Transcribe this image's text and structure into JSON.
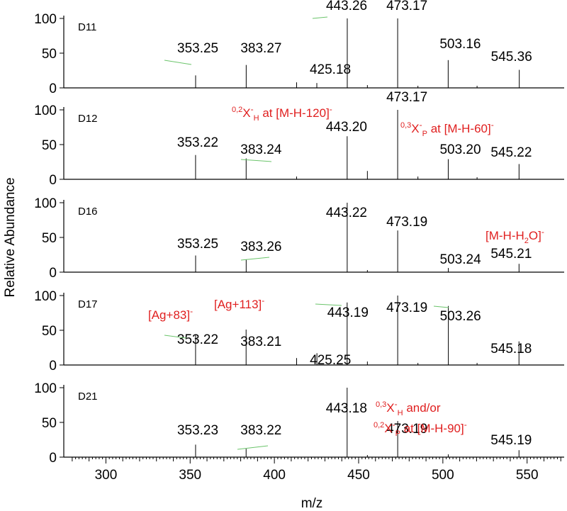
{
  "colors": {
    "annotation": "#e01f1f",
    "leader": "#6ac46a",
    "axis": "#000000",
    "peak": "#000000"
  },
  "chart_data": {
    "type": "bar",
    "xlabel": "m/z",
    "ylabel": "Relative Abundance",
    "xlim": [
      275,
      572
    ],
    "ylim": [
      0,
      100
    ],
    "x_ticks": [
      300,
      350,
      400,
      450,
      500,
      550
    ],
    "y_ticks": [
      0,
      50,
      100
    ],
    "panels": [
      {
        "name": "D11",
        "peaks": [
          {
            "x": 353.25,
            "y": 18,
            "label": "353.25"
          },
          {
            "x": 383.27,
            "y": 33,
            "label": "383.27"
          },
          {
            "x": 413.2,
            "y": 8
          },
          {
            "x": 425.18,
            "y": 7,
            "label": "425.18"
          },
          {
            "x": 443.26,
            "y": 100,
            "label": "443.26"
          },
          {
            "x": 455.2,
            "y": 4
          },
          {
            "x": 473.17,
            "y": 100,
            "label": "473.17"
          },
          {
            "x": 485.2,
            "y": 3
          },
          {
            "x": 503.16,
            "y": 40,
            "label": "503.16"
          },
          {
            "x": 520.3,
            "y": 3
          },
          {
            "x": 545.36,
            "y": 26,
            "label": "545.36"
          }
        ],
        "annotations": []
      },
      {
        "name": "D12",
        "peaks": [
          {
            "x": 353.22,
            "y": 35,
            "label": "353.22"
          },
          {
            "x": 383.24,
            "y": 30,
            "label": "383.24"
          },
          {
            "x": 413.2,
            "y": 4
          },
          {
            "x": 443.2,
            "y": 62,
            "label": "443.20"
          },
          {
            "x": 455.2,
            "y": 12
          },
          {
            "x": 473.17,
            "y": 100,
            "label": "473.17"
          },
          {
            "x": 485.2,
            "y": 4
          },
          {
            "x": 503.2,
            "y": 29,
            "label": "503.20"
          },
          {
            "x": 520.3,
            "y": 3
          },
          {
            "x": 545.22,
            "y": 22,
            "label": "545.22"
          }
        ],
        "annotations": [
          {
            "sup": "0,2",
            "main": "X",
            "sup2": "-",
            "sub": "H",
            "rest": " at [M-H-120]",
            "tail": "-"
          },
          {
            "sup": "0,3",
            "main": "X",
            "sup2": "-",
            "sub": "P",
            "rest": " at [M-H-60]",
            "tail": "-"
          }
        ]
      },
      {
        "name": "D16",
        "peaks": [
          {
            "x": 353.25,
            "y": 24,
            "label": "353.25"
          },
          {
            "x": 383.26,
            "y": 18,
            "label": "383.26"
          },
          {
            "x": 443.22,
            "y": 100,
            "label": "443.22"
          },
          {
            "x": 455.2,
            "y": 3
          },
          {
            "x": 473.19,
            "y": 60,
            "label": "473.19"
          },
          {
            "x": 503.24,
            "y": 6,
            "label": "503.24"
          },
          {
            "x": 545.21,
            "y": 12,
            "label": "545.21"
          }
        ],
        "annotations": [
          {
            "pre": "[M-H-H",
            "sub": "2",
            "rest": "O]",
            "tail": "-"
          }
        ]
      },
      {
        "name": "D17",
        "peaks": [
          {
            "x": 353.22,
            "y": 44,
            "label": "353.22"
          },
          {
            "x": 383.21,
            "y": 51,
            "label": "383.21"
          },
          {
            "x": 413.2,
            "y": 10
          },
          {
            "x": 425.25,
            "y": 17,
            "label": "425.25"
          },
          {
            "x": 443.19,
            "y": 90,
            "label": "443.19"
          },
          {
            "x": 455.2,
            "y": 5
          },
          {
            "x": 473.19,
            "y": 100,
            "label": "473.19"
          },
          {
            "x": 485.2,
            "y": 3
          },
          {
            "x": 503.26,
            "y": 85,
            "label": "503.26"
          },
          {
            "x": 520.3,
            "y": 3
          },
          {
            "x": 545.18,
            "y": 34,
            "label": "545.18"
          }
        ],
        "annotations": [
          {
            "pre": "[Ag+83]",
            "tail": "-"
          },
          {
            "pre": "[Ag+113]",
            "tail": "-"
          }
        ]
      },
      {
        "name": "D21",
        "peaks": [
          {
            "x": 353.23,
            "y": 18,
            "label": "353.23"
          },
          {
            "x": 383.22,
            "y": 12,
            "label": "383.22"
          },
          {
            "x": 443.18,
            "y": 100,
            "label": "443.18"
          },
          {
            "x": 455.2,
            "y": 3
          },
          {
            "x": 473.19,
            "y": 52,
            "label": "473.19"
          },
          {
            "x": 503.2,
            "y": 4
          },
          {
            "x": 545.19,
            "y": 10,
            "label": "545.19"
          }
        ],
        "annotations": [
          {
            "sup": "0,3",
            "main": "X",
            "sup2": "-",
            "sub": "H",
            "rest": " and/or"
          },
          {
            "sup": "0,2",
            "main": "X",
            "sup2": "-",
            "sub": "P",
            "rest": " at [M-H-90]",
            "tail": "-"
          }
        ]
      }
    ]
  }
}
